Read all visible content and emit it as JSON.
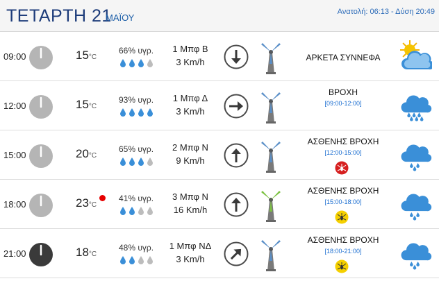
{
  "header": {
    "day_title": "ΤΕΤΑΡΤΗ 21",
    "month": "ΜΑΪΟΥ",
    "sunrise_sunset": "Ανατολή: 06:13 - Δύση 20:49"
  },
  "rows": [
    {
      "time": "09:00",
      "clock_icon": "clock-icon-light",
      "temp": "15",
      "temp_unit": "°C",
      "hot": false,
      "humidity": "66% υγρ.",
      "humidity_level": 3,
      "wind_bf": "1 Μπφ Β",
      "wind_kmh": "3 Km/h",
      "wind_direction": "north",
      "turbine_icon": "wind-turbine-blue-icon",
      "condition": "ΑΡΚΕΤΑ ΣΥΝΝΕΦΑ",
      "period": "",
      "warning_icon": "",
      "weather_icon": "partly-cloudy-icon"
    },
    {
      "time": "12:00",
      "clock_icon": "clock-icon-light",
      "temp": "15",
      "temp_unit": "°C",
      "hot": false,
      "humidity": "93% υγρ.",
      "humidity_level": 4,
      "wind_bf": "1 Μπφ Δ",
      "wind_kmh": "3 Km/h",
      "wind_direction": "west",
      "turbine_icon": "wind-turbine-blue-icon",
      "condition": "ΒΡΟΧΗ",
      "period": "[09:00-12:00]",
      "warning_icon": "",
      "weather_icon": "heavy-rain-icon"
    },
    {
      "time": "15:00",
      "clock_icon": "clock-icon-light",
      "temp": "20",
      "temp_unit": "°C",
      "hot": false,
      "humidity": "65% υγρ.",
      "humidity_level": 3,
      "wind_bf": "2 Μπφ Ν",
      "wind_kmh": "9 Km/h",
      "wind_direction": "south",
      "turbine_icon": "wind-turbine-blue-icon",
      "condition": "ΑΣΘΕΝΗΣ ΒΡΟΧΗ",
      "period": "[12:00-15:00]",
      "warning_icon": "red-mosquito-warning-icon",
      "weather_icon": "light-rain-icon"
    },
    {
      "time": "18:00",
      "clock_icon": "clock-icon-light",
      "temp": "23",
      "temp_unit": "°C",
      "hot": true,
      "humidity": "41% υγρ.",
      "humidity_level": 2,
      "wind_bf": "3 Μπφ Ν",
      "wind_kmh": "16 Km/h",
      "wind_direction": "south",
      "turbine_icon": "wind-turbine-green-icon",
      "condition": "ΑΣΘΕΝΗΣ ΒΡΟΧΗ",
      "period": "[15:00-18:00]",
      "warning_icon": "yellow-mosquito-warning-icon",
      "weather_icon": "light-rain-icon"
    },
    {
      "time": "21:00",
      "clock_icon": "clock-icon-dark",
      "temp": "18",
      "temp_unit": "°C",
      "hot": false,
      "humidity": "48% υγρ.",
      "humidity_level": 2,
      "wind_bf": "1 Μπφ ΝΔ",
      "wind_kmh": "3 Km/h",
      "wind_direction": "southwest",
      "turbine_icon": "wind-turbine-blue-icon",
      "condition": "ΑΣΘΕΝΗΣ ΒΡΟΧΗ",
      "period": "[18:00-21:00]",
      "warning_icon": "yellow-mosquito-warning-icon",
      "weather_icon": "light-rain-icon"
    }
  ],
  "colors": {
    "title": "#1d3c7a",
    "period": "#1d6fd1",
    "drop_filled": "#3a8fd8",
    "drop_empty": "#bcbcbc",
    "hot": "#e60000",
    "cloud": "#3a8fd8",
    "turbine_blue": "#5a8fc8",
    "turbine_green": "#7cc242"
  }
}
